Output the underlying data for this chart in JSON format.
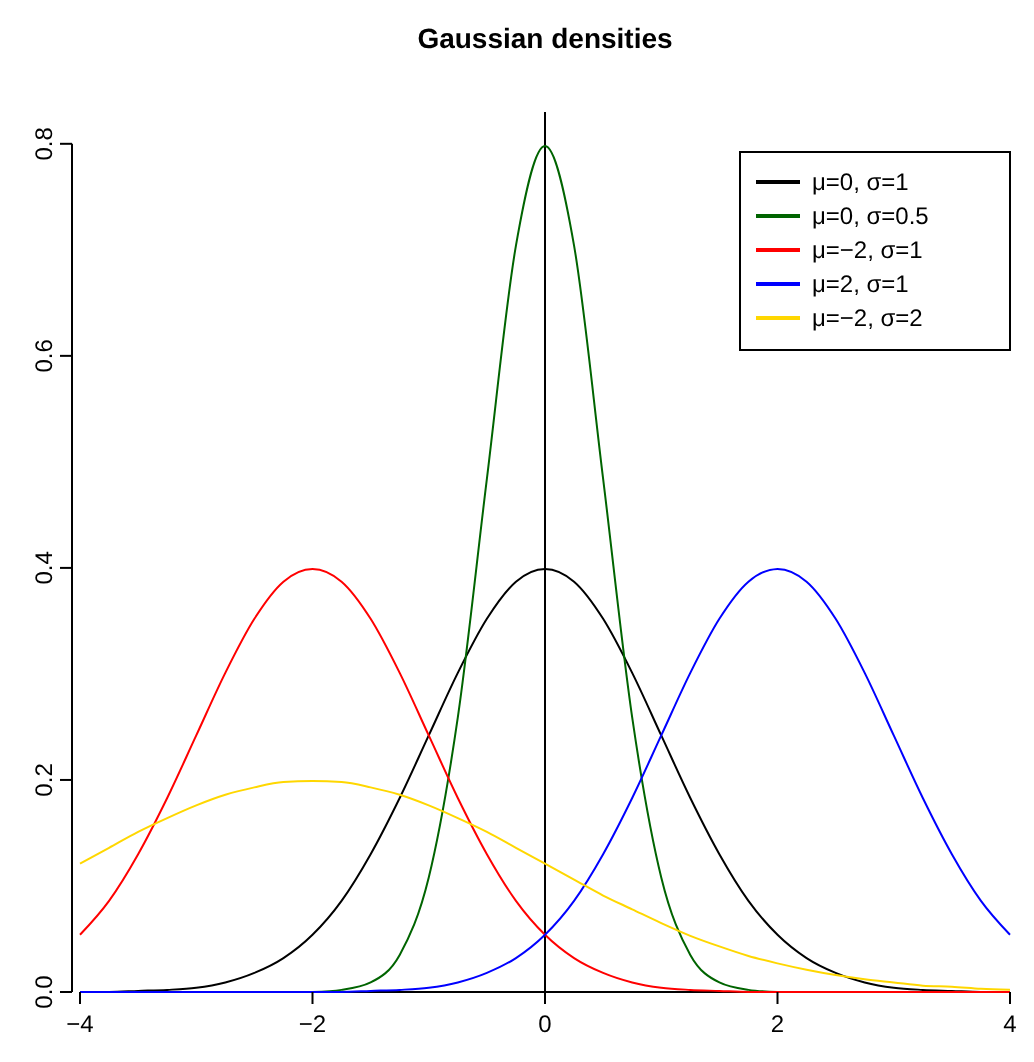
{
  "chart_data": {
    "type": "line",
    "title": "Gaussian densities",
    "x": [
      -4,
      -3.75,
      -3.5,
      -3.25,
      -3,
      -2.75,
      -2.5,
      -2.25,
      -2,
      -1.75,
      -1.5,
      -1.25,
      -1,
      -0.75,
      -0.5,
      -0.25,
      0,
      0.25,
      0.5,
      0.75,
      1,
      1.25,
      1.5,
      1.75,
      2,
      2.25,
      2.5,
      2.75,
      3,
      3.25,
      3.5,
      3.75,
      4
    ],
    "series": [
      {
        "name": "μ=0, σ=1",
        "color": "#000000",
        "values": [
          0,
          0,
          0.001,
          0.002,
          0.004,
          0.009,
          0.018,
          0.032,
          0.054,
          0.086,
          0.13,
          0.183,
          0.242,
          0.301,
          0.352,
          0.387,
          0.399,
          0.387,
          0.352,
          0.301,
          0.242,
          0.183,
          0.13,
          0.086,
          0.054,
          0.032,
          0.018,
          0.009,
          0.004,
          0.002,
          0.001,
          0,
          0
        ]
      },
      {
        "name": "μ=0, σ=0.5",
        "color": "#006400",
        "values": [
          null,
          null,
          null,
          null,
          null,
          null,
          null,
          null,
          0,
          0.002,
          0.009,
          0.035,
          0.108,
          0.259,
          0.484,
          0.704,
          0.798,
          0.704,
          0.484,
          0.259,
          0.108,
          0.035,
          0.009,
          0.002,
          0,
          null,
          null,
          null,
          null,
          null,
          null,
          null,
          null
        ]
      },
      {
        "name": "μ=−2, σ=1",
        "color": "#ff0000",
        "values": [
          0.054,
          0.086,
          0.13,
          0.183,
          0.242,
          0.301,
          0.352,
          0.387,
          0.399,
          0.387,
          0.352,
          0.301,
          0.242,
          0.183,
          0.13,
          0.086,
          0.054,
          0.032,
          0.018,
          0.009,
          0.004,
          0.002,
          0.001,
          0,
          0,
          0,
          0,
          0,
          0,
          0,
          0,
          0,
          0
        ]
      },
      {
        "name": "μ=2, σ=1",
        "color": "#0000ff",
        "values": [
          0,
          0,
          0,
          0,
          0,
          0,
          0,
          0,
          0,
          0,
          0.001,
          0.002,
          0.004,
          0.009,
          0.018,
          0.032,
          0.054,
          0.086,
          0.13,
          0.183,
          0.242,
          0.301,
          0.352,
          0.387,
          0.399,
          0.387,
          0.352,
          0.301,
          0.242,
          0.183,
          0.13,
          0.086,
          0.054
        ]
      },
      {
        "name": "μ=−2, σ=2",
        "color": "#ffd700",
        "values": [
          0.121,
          0.136,
          0.151,
          0.164,
          0.176,
          0.186,
          0.193,
          0.198,
          0.199,
          0.198,
          0.193,
          0.186,
          0.176,
          0.164,
          0.151,
          0.136,
          0.121,
          0.106,
          0.091,
          0.078,
          0.065,
          0.053,
          0.043,
          0.034,
          0.027,
          0.021,
          0.016,
          0.012,
          0.009,
          0.006,
          0.005,
          0.003,
          0.002
        ]
      }
    ],
    "xlim": [
      -4,
      4
    ],
    "xticks": [
      {
        "value": -4,
        "label": "−4"
      },
      {
        "value": -2,
        "label": "−2"
      },
      0,
      2,
      4
    ],
    "ylim": [
      0,
      0.83
    ],
    "yticks": [
      {
        "value": 0,
        "label": "0.0"
      },
      0.2,
      0.4,
      0.6,
      0.8
    ],
    "ref_lines": [
      {
        "axis": "x",
        "value": 0,
        "color": "#000000"
      }
    ],
    "legend": "top right",
    "grid": false,
    "marker": "none",
    "line_style": "solid"
  }
}
